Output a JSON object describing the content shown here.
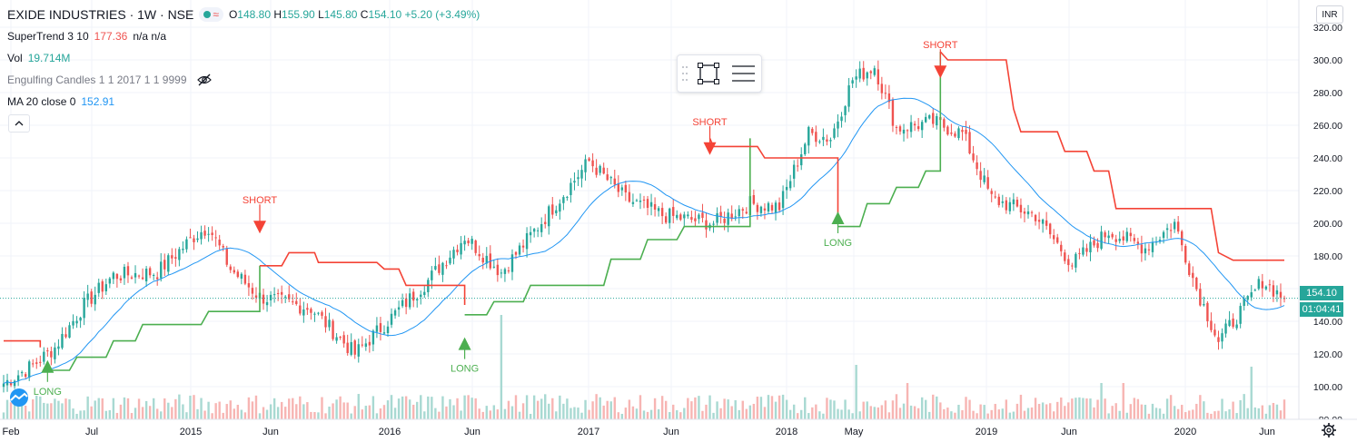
{
  "header": {
    "symbol": "EXIDE INDUSTRIES · 1W · NSE",
    "ohlc": {
      "o_label": "O",
      "o": "148.80",
      "h_label": "H",
      "h": "155.90",
      "l_label": "L",
      "l": "145.80",
      "c_label": "C",
      "c": "154.10",
      "change": "+5.20 (+3.49%)"
    },
    "badge_icon": "≈"
  },
  "indicators": {
    "supertrend": {
      "label": "SuperTrend 3 10",
      "value": "177.36",
      "extra": "n/a n/a"
    },
    "volume": {
      "label": "Vol",
      "value": "19.714M"
    },
    "engulfing": {
      "label": "Engulfing Candles 1 1 2017 1 1 9999",
      "icon": "eye-off-icon"
    },
    "ma": {
      "label": "MA 20 close 0",
      "value": "152.91"
    }
  },
  "price_axis": {
    "currency_button": "INR",
    "ticks": [
      "320.00",
      "300.00",
      "280.00",
      "260.00",
      "240.00",
      "220.00",
      "200.00",
      "180.00",
      "160.00",
      "140.00",
      "120.00",
      "100.00",
      "80.00"
    ],
    "last_price": "154.10",
    "countdown": "01:04:41"
  },
  "time_axis": {
    "labels": [
      "Feb",
      "Jul",
      "2015",
      "Jun",
      "2016",
      "Jun",
      "2017",
      "Jun",
      "2018",
      "May",
      "2019",
      "Jun",
      "2020",
      "Jun"
    ]
  },
  "signals": {
    "long_label": "LONG",
    "short_label": "SHORT"
  },
  "colors": {
    "up": "#26a69a",
    "down": "#ef5350",
    "ma": "#2196f3",
    "st_up": "#4caf50",
    "st_down": "#f44336",
    "vol_up": "#a8d9d2",
    "vol_down": "#f7b5b3"
  },
  "chart_data": {
    "type": "candlestick",
    "y_range": [
      80,
      320
    ],
    "supertrend_value": 177.36,
    "ma_value": 152.91,
    "long_signals": [
      {
        "x": "Mar 2014",
        "price": 124
      },
      {
        "x": "May 2016",
        "price": 138
      },
      {
        "x": "Mar 2018",
        "price": 215
      }
    ],
    "short_signals": [
      {
        "x": "Apr 2015",
        "price": 186
      },
      {
        "x": "Jul 2017",
        "price": 234
      },
      {
        "x": "Aug 2018",
        "price": 281
      }
    ],
    "close_anchors": [
      {
        "w": 0,
        "c": 102
      },
      {
        "w": 8,
        "c": 113
      },
      {
        "w": 14,
        "c": 124
      },
      {
        "w": 22,
        "c": 150
      },
      {
        "w": 30,
        "c": 168
      },
      {
        "w": 42,
        "c": 170
      },
      {
        "w": 52,
        "c": 192
      },
      {
        "w": 56,
        "c": 198
      },
      {
        "w": 62,
        "c": 172
      },
      {
        "w": 70,
        "c": 155
      },
      {
        "w": 84,
        "c": 148
      },
      {
        "w": 96,
        "c": 120
      },
      {
        "w": 104,
        "c": 138
      },
      {
        "w": 116,
        "c": 165
      },
      {
        "w": 126,
        "c": 192
      },
      {
        "w": 136,
        "c": 170
      },
      {
        "w": 146,
        "c": 198
      },
      {
        "w": 160,
        "c": 238
      },
      {
        "w": 170,
        "c": 215
      },
      {
        "w": 180,
        "c": 205
      },
      {
        "w": 194,
        "c": 200
      },
      {
        "w": 204,
        "c": 212
      },
      {
        "w": 212,
        "c": 210
      },
      {
        "w": 220,
        "c": 255
      },
      {
        "w": 226,
        "c": 252
      },
      {
        "w": 232,
        "c": 288
      },
      {
        "w": 238,
        "c": 296
      },
      {
        "w": 244,
        "c": 258
      },
      {
        "w": 254,
        "c": 262
      },
      {
        "w": 262,
        "c": 255
      },
      {
        "w": 270,
        "c": 215
      },
      {
        "w": 282,
        "c": 205
      },
      {
        "w": 292,
        "c": 175
      },
      {
        "w": 302,
        "c": 195
      },
      {
        "w": 312,
        "c": 185
      },
      {
        "w": 320,
        "c": 200
      },
      {
        "w": 326,
        "c": 160
      },
      {
        "w": 332,
        "c": 128
      },
      {
        "w": 340,
        "c": 152
      },
      {
        "w": 344,
        "c": 165
      },
      {
        "w": 350,
        "c": 154
      }
    ]
  }
}
